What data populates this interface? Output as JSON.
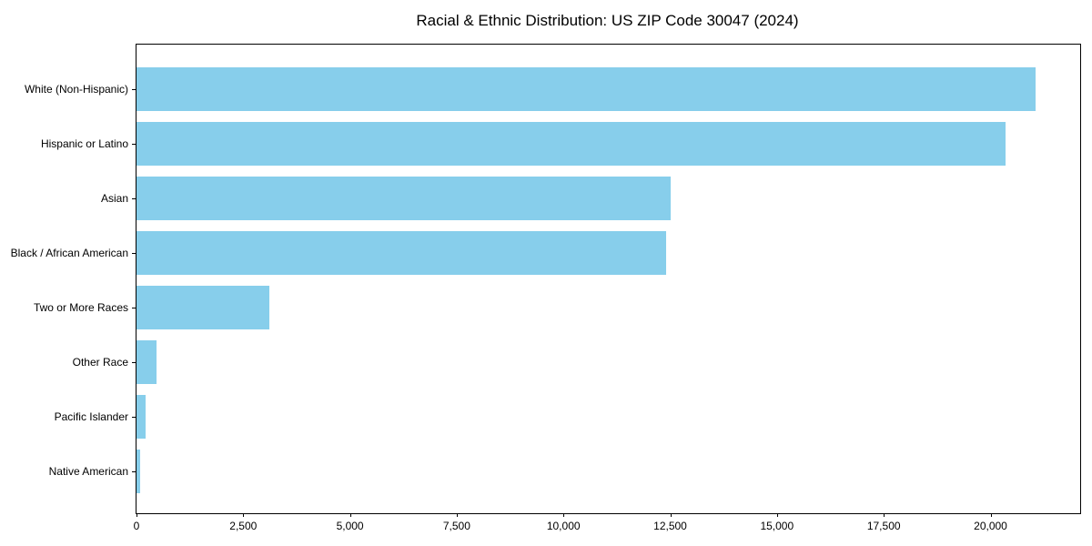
{
  "chart_data": {
    "type": "bar",
    "orientation": "horizontal",
    "title": "Racial & Ethnic Distribution: US ZIP Code 30047 (2024)",
    "categories": [
      "White (Non-Hispanic)",
      "Hispanic or Latino",
      "Asian",
      "Black / African American",
      "Two or More Races",
      "Other Race",
      "Pacific Islander",
      "Native American"
    ],
    "values": [
      21050,
      20350,
      12500,
      12400,
      3100,
      470,
      220,
      80
    ],
    "xlabel": "",
    "ylabel": "",
    "xlim": [
      0,
      22100
    ],
    "xticks": [
      0,
      2500,
      5000,
      7500,
      10000,
      12500,
      15000,
      17500,
      20000
    ],
    "xtick_labels": [
      "0",
      "2,500",
      "5,000",
      "7,500",
      "10,000",
      "12,500",
      "15,000",
      "17,500",
      "20,000"
    ],
    "bar_color": "#87CEEB",
    "axis_color": "#000000",
    "text_color": "#000000",
    "grid": false,
    "legend": null
  }
}
